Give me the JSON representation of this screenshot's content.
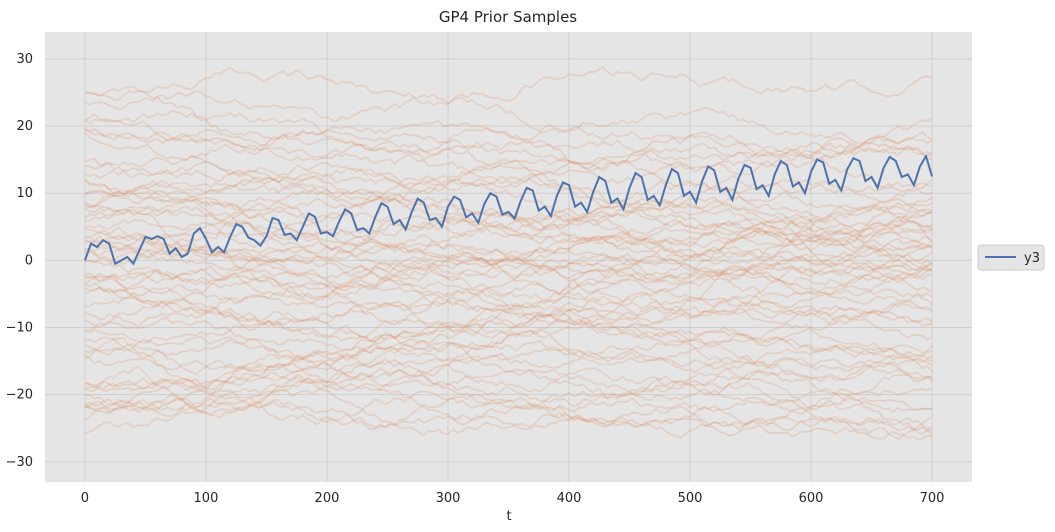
{
  "chart_data": {
    "type": "line",
    "title": "GP4 Prior Samples",
    "xlabel": "t",
    "ylabel": "",
    "xlim": [
      -33,
      733
    ],
    "ylim": [
      -33,
      34
    ],
    "xticks": [
      0,
      100,
      200,
      300,
      400,
      500,
      600,
      700
    ],
    "yticks": [
      -30,
      -20,
      -10,
      0,
      10,
      20,
      30
    ],
    "grid": true,
    "legend_position": "right",
    "colors": {
      "background": "#e5e5e5",
      "grid": "#cfcfcf",
      "samples": "#dd8452",
      "main": "#4c72b0"
    },
    "sample_line_opacity": 0.2,
    "sample_paths": {
      "count": 60,
      "x_range": [
        0,
        700
      ],
      "start_values": [
        26,
        24,
        21,
        20,
        18,
        17,
        15,
        14,
        13,
        12,
        11,
        10,
        9,
        8,
        8,
        7,
        6,
        6,
        5,
        4,
        4,
        3,
        2,
        2,
        1,
        0,
        0,
        -1,
        -2,
        -2,
        -3,
        -4,
        -5,
        -6,
        -7,
        -8,
        -9,
        -10,
        -11,
        -12,
        -13,
        -14,
        -15,
        -16,
        -17,
        -18,
        -19,
        -20,
        -20,
        -21,
        -22,
        -23,
        -24,
        -25,
        -26,
        25,
        19,
        10,
        3,
        -5
      ],
      "end_values": [
        26,
        19,
        17,
        15,
        14,
        12,
        10,
        9,
        8,
        7,
        6,
        5,
        5,
        4,
        4,
        3,
        3,
        2,
        2,
        1,
        0,
        0,
        -1,
        -1,
        -2,
        -3,
        -3,
        -4,
        -5,
        -6,
        -7,
        -8,
        -9,
        -10,
        -11,
        -12,
        -13,
        -14,
        -15,
        -16,
        -17,
        -18,
        -19,
        -20,
        -21,
        -22,
        -23,
        -24,
        -24,
        -25,
        -26,
        11,
        9,
        6,
        2,
        -2,
        16,
        18,
        -19,
        5
      ]
    },
    "series": [
      {
        "name": "y3",
        "x": [
          0,
          5,
          10,
          15,
          20,
          25,
          30,
          35,
          40,
          45,
          50,
          55,
          60,
          65,
          70,
          75,
          80,
          85,
          90,
          95,
          100,
          105,
          110,
          115,
          120,
          125,
          130,
          135,
          140,
          145,
          150,
          155,
          160,
          165,
          170,
          175,
          180,
          185,
          190,
          195,
          200,
          205,
          210,
          215,
          220,
          225,
          230,
          235,
          240,
          245,
          250,
          255,
          260,
          265,
          270,
          275,
          280,
          285,
          290,
          295,
          300,
          305,
          310,
          315,
          320,
          325,
          330,
          335,
          340,
          345,
          350,
          355,
          360,
          365,
          370,
          375,
          380,
          385,
          390,
          395,
          400,
          405,
          410,
          415,
          420,
          425,
          430,
          435,
          440,
          445,
          450,
          455,
          460,
          465,
          470,
          475,
          480,
          485,
          490,
          495,
          500,
          505,
          510,
          515,
          520,
          525,
          530,
          535,
          540,
          545,
          550,
          555,
          560,
          565,
          570,
          575,
          580,
          585,
          590,
          595,
          600,
          605,
          610,
          615,
          620,
          625,
          630,
          635,
          640,
          645,
          650,
          655,
          660,
          665,
          670,
          675,
          680,
          685,
          690,
          695,
          700
        ],
        "y": [
          0.0,
          2.5,
          2.0,
          3.0,
          2.5,
          -0.5,
          0.0,
          0.5,
          -0.5,
          1.5,
          3.5,
          3.2,
          3.6,
          3.2,
          1.0,
          1.8,
          0.5,
          1.0,
          4.0,
          4.8,
          3.2,
          1.2,
          2.0,
          1.2,
          3.5,
          5.4,
          5.0,
          3.4,
          3.0,
          2.2,
          3.6,
          6.3,
          6.0,
          3.8,
          4.0,
          3.0,
          5.0,
          7.0,
          6.5,
          4.0,
          4.2,
          3.6,
          5.8,
          7.6,
          7.0,
          4.5,
          4.8,
          4.0,
          6.5,
          8.5,
          8.0,
          5.4,
          6.0,
          4.6,
          7.2,
          9.2,
          8.6,
          6.0,
          6.3,
          5.0,
          8.0,
          9.5,
          9.0,
          6.4,
          7.0,
          5.6,
          8.4,
          10.0,
          9.5,
          6.8,
          7.2,
          6.2,
          8.8,
          10.8,
          10.4,
          7.4,
          8.0,
          6.6,
          9.6,
          11.6,
          11.2,
          8.0,
          8.6,
          7.2,
          10.2,
          12.4,
          11.8,
          8.6,
          9.2,
          7.6,
          10.8,
          13.0,
          12.4,
          9.0,
          9.6,
          8.2,
          11.2,
          13.6,
          13.0,
          9.6,
          10.2,
          8.6,
          11.8,
          14.0,
          13.4,
          10.2,
          10.8,
          9.0,
          12.2,
          14.2,
          13.8,
          10.6,
          11.2,
          9.6,
          12.8,
          14.8,
          14.2,
          11.0,
          11.6,
          10.0,
          13.2,
          15.0,
          14.6,
          11.4,
          12.0,
          10.4,
          13.6,
          15.2,
          14.8,
          11.8,
          12.4,
          10.8,
          13.8,
          15.4,
          14.8,
          12.4,
          12.8,
          11.2,
          14.0,
          15.5,
          12.5
        ]
      }
    ]
  }
}
